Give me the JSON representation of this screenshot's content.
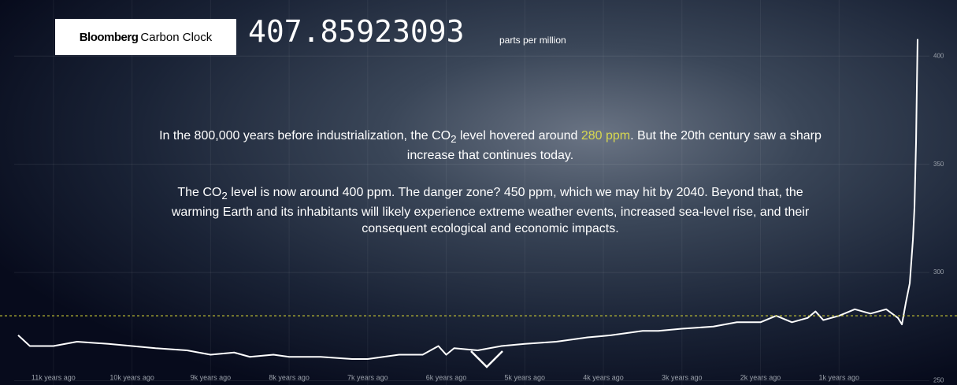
{
  "header": {
    "brand": "Bloomberg",
    "product": "Carbon Clock",
    "reading": "407.85923093",
    "unit": "parts per million"
  },
  "paragraphs": [
    [
      "In the 800,000 years before industrialization, the CO",
      "2",
      " level hovered around ",
      "280 ppm",
      ". But the 20th century saw a sharp increase that continues today."
    ],
    [
      "The CO",
      "2",
      " level is now around 400 ppm. The danger zone? 450 ppm, which we may hit by 2040. Beyond that, the warming Earth and its inhabitants will likely experience extreme weather events, increased sea-level rise, and their consequent ecological and economic impacts."
    ]
  ],
  "chart_data": {
    "type": "line",
    "x": [
      -11450,
      -11300,
      -11000,
      -10700,
      -10300,
      -10000,
      -9700,
      -9300,
      -9000,
      -8700,
      -8500,
      -8200,
      -8000,
      -7600,
      -7200,
      -7000,
      -6600,
      -6300,
      -6100,
      -6000,
      -5900,
      -5600,
      -5300,
      -5000,
      -4600,
      -4200,
      -3900,
      -3500,
      -3300,
      -3000,
      -2600,
      -2300,
      -2000,
      -1800,
      -1600,
      -1400,
      -1300,
      -1200,
      -1000,
      -800,
      -600,
      -400,
      -250,
      -200,
      -150,
      -100,
      -60,
      -40,
      -20,
      -10,
      0
    ],
    "series": [
      {
        "color": "#ffffff",
        "values": [
          271,
          266,
          266,
          268,
          267,
          266,
          265,
          264,
          262,
          263,
          261,
          262,
          261,
          261,
          260,
          260,
          262,
          262,
          266,
          262,
          265,
          264,
          266,
          267,
          268,
          270,
          271,
          273,
          273,
          274,
          275,
          277,
          277,
          280,
          277,
          279,
          282,
          278,
          280,
          283,
          281,
          283,
          279,
          276,
          286,
          295,
          315,
          330,
          360,
          385,
          407.86
        ]
      }
    ],
    "reference_line": 280,
    "reference_color": "#c8c832",
    "xlim": [
      -11500,
      0
    ],
    "xticks": [
      {
        "value": -11000,
        "label": "11k years ago"
      },
      {
        "value": -10000,
        "label": "10k years ago"
      },
      {
        "value": -9000,
        "label": "9k years ago"
      },
      {
        "value": -8000,
        "label": "8k years ago"
      },
      {
        "value": -7000,
        "label": "7k years ago"
      },
      {
        "value": -6000,
        "label": "6k years ago"
      },
      {
        "value": -5000,
        "label": "5k years ago"
      },
      {
        "value": -4000,
        "label": "4k years ago"
      },
      {
        "value": -3000,
        "label": "3k years ago"
      },
      {
        "value": -2000,
        "label": "2k years ago"
      },
      {
        "value": -1000,
        "label": "1k years ago"
      }
    ],
    "ylim": [
      248,
      415
    ],
    "yticks": [
      250,
      300,
      350,
      400
    ],
    "grid": true
  }
}
